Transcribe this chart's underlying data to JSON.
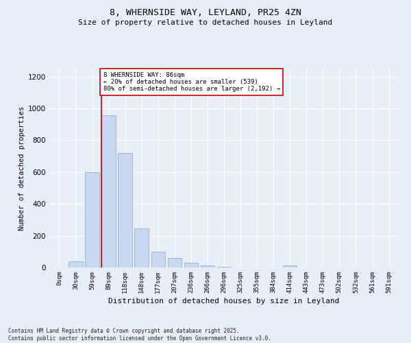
{
  "title1": "8, WHERNSIDE WAY, LEYLAND, PR25 4ZN",
  "title2": "Size of property relative to detached houses in Leyland",
  "xlabel": "Distribution of detached houses by size in Leyland",
  "ylabel": "Number of detached properties",
  "bar_labels": [
    "0sqm",
    "30sqm",
    "59sqm",
    "89sqm",
    "118sqm",
    "148sqm",
    "177sqm",
    "207sqm",
    "236sqm",
    "266sqm",
    "296sqm",
    "325sqm",
    "355sqm",
    "384sqm",
    "414sqm",
    "443sqm",
    "473sqm",
    "502sqm",
    "532sqm",
    "561sqm",
    "591sqm"
  ],
  "bar_values": [
    0,
    37,
    600,
    955,
    720,
    245,
    100,
    60,
    30,
    15,
    5,
    2,
    1,
    0,
    15,
    0,
    0,
    0,
    0,
    0,
    0
  ],
  "bar_color": "#c8d8f0",
  "bar_edge_color": "#7baad4",
  "vline_x_index": 3,
  "vline_color": "#cc0000",
  "annotation_text": "8 WHERNSIDE WAY: 86sqm\n← 20% of detached houses are smaller (539)\n80% of semi-detached houses are larger (2,192) →",
  "annotation_box_color": "#ffffff",
  "annotation_box_edge": "#cc0000",
  "ylim": [
    0,
    1250
  ],
  "yticks": [
    0,
    200,
    400,
    600,
    800,
    1000,
    1200
  ],
  "background_color": "#e8eef8",
  "grid_color": "#ffffff",
  "footer": "Contains HM Land Registry data © Crown copyright and database right 2025.\nContains public sector information licensed under the Open Government Licence v3.0."
}
